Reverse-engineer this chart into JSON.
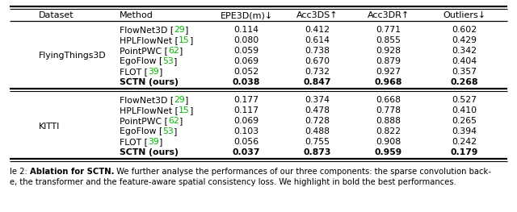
{
  "flyingthings_rows": [
    {
      "method": "FlowNet3D",
      "ref": "29",
      "epe": "0.114",
      "acc3ds": "0.412",
      "acc3dr": "0.771",
      "outliers": "0.602",
      "bold": false
    },
    {
      "method": "HPLFlowNet",
      "ref": "15",
      "epe": "0.080",
      "acc3ds": "0.614",
      "acc3dr": "0.855",
      "outliers": "0.429",
      "bold": false
    },
    {
      "method": "PointPWC",
      "ref": "62",
      "epe": "0.059",
      "acc3ds": "0.738",
      "acc3dr": "0.928",
      "outliers": "0.342",
      "bold": false
    },
    {
      "method": "EgoFlow",
      "ref": "53",
      "epe": "0.069",
      "acc3ds": "0.670",
      "acc3dr": "0.879",
      "outliers": "0.404",
      "bold": false
    },
    {
      "method": "FLOT",
      "ref": "39",
      "epe": "0.052",
      "acc3ds": "0.732",
      "acc3dr": "0.927",
      "outliers": "0.357",
      "bold": false
    },
    {
      "method": "SCTN (ours)",
      "ref": "",
      "epe": "0.038",
      "acc3ds": "0.847",
      "acc3dr": "0.968",
      "outliers": "0.268",
      "bold": true
    }
  ],
  "kitti_rows": [
    {
      "method": "FlowNet3D",
      "ref": "29",
      "epe": "0.177",
      "acc3ds": "0.374",
      "acc3dr": "0.668",
      "outliers": "0.527",
      "bold": false
    },
    {
      "method": "HPLFlowNet",
      "ref": "15",
      "epe": "0.117",
      "acc3ds": "0.478",
      "acc3dr": "0.778",
      "outliers": "0.410",
      "bold": false
    },
    {
      "method": "PointPWC",
      "ref": "62",
      "epe": "0.069",
      "acc3ds": "0.728",
      "acc3dr": "0.888",
      "outliers": "0.265",
      "bold": false
    },
    {
      "method": "EgoFlow",
      "ref": "53",
      "epe": "0.103",
      "acc3ds": "0.488",
      "acc3dr": "0.822",
      "outliers": "0.394",
      "bold": false
    },
    {
      "method": "FLOT",
      "ref": "39",
      "epe": "0.056",
      "acc3ds": "0.755",
      "acc3dr": "0.908",
      "outliers": "0.242",
      "bold": false
    },
    {
      "method": "SCTN (ours)",
      "ref": "",
      "epe": "0.037",
      "acc3ds": "0.873",
      "acc3dr": "0.959",
      "outliers": "0.179",
      "bold": true
    }
  ],
  "ref_color": "#00bb00",
  "bg_color": "#ffffff",
  "text_color": "#000000",
  "caption_label": "le 2: ",
  "caption_bold": "Ablation for SCTN.",
  "caption_rest1": " We further analyse the performances of our three components: the sparse convolution back-",
  "caption_line2": "e, the transformer and the feature-aware spatial consistency loss. We highlight in bold the best performances.",
  "header_fs": 8.0,
  "data_fs": 7.8,
  "caption_fs": 7.2
}
